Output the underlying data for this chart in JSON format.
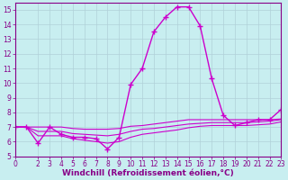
{
  "xlabel": "Windchill (Refroidissement éolien,°C)",
  "background_color": "#c8eef0",
  "grid_color": "#b0d0d8",
  "line_color": "#cc00cc",
  "axis_color": "#880088",
  "xlim": [
    0,
    23
  ],
  "ylim": [
    5,
    15.5
  ],
  "yticks": [
    5,
    6,
    7,
    8,
    9,
    10,
    11,
    12,
    13,
    14,
    15
  ],
  "xticks": [
    0,
    2,
    3,
    4,
    5,
    6,
    7,
    8,
    9,
    10,
    11,
    12,
    13,
    14,
    15,
    16,
    17,
    18,
    19,
    20,
    21,
    22,
    23
  ],
  "series": [
    {
      "x": [
        0,
        1,
        2,
        3,
        4,
        5,
        6,
        7,
        8,
        9,
        10,
        11,
        12,
        13,
        14,
        15,
        16,
        17,
        18,
        19,
        20,
        21,
        22,
        23
      ],
      "y": [
        7.0,
        7.0,
        5.9,
        7.0,
        6.5,
        6.3,
        6.3,
        6.2,
        5.5,
        6.3,
        9.9,
        11.0,
        13.5,
        14.5,
        15.2,
        15.2,
        13.9,
        10.3,
        7.8,
        7.1,
        7.3,
        7.5,
        7.5,
        8.2
      ],
      "marker": "+",
      "markersize": 4,
      "linewidth": 1.0
    },
    {
      "x": [
        0,
        1,
        2,
        3,
        4,
        5,
        6,
        7,
        8,
        9,
        10,
        11,
        12,
        13,
        14,
        15,
        16,
        17,
        18,
        19,
        20,
        21,
        22,
        23
      ],
      "y": [
        7.0,
        7.0,
        7.0,
        7.0,
        7.0,
        6.9,
        6.85,
        6.85,
        6.85,
        6.9,
        7.05,
        7.1,
        7.2,
        7.3,
        7.4,
        7.5,
        7.5,
        7.5,
        7.5,
        7.5,
        7.5,
        7.5,
        7.5,
        7.55
      ],
      "marker": null,
      "linewidth": 0.8
    },
    {
      "x": [
        0,
        1,
        2,
        3,
        4,
        5,
        6,
        7,
        8,
        9,
        10,
        11,
        12,
        13,
        14,
        15,
        16,
        17,
        18,
        19,
        20,
        21,
        22,
        23
      ],
      "y": [
        7.0,
        7.0,
        6.7,
        6.7,
        6.7,
        6.55,
        6.5,
        6.45,
        6.4,
        6.5,
        6.7,
        6.85,
        6.9,
        7.0,
        7.1,
        7.2,
        7.25,
        7.3,
        7.3,
        7.3,
        7.3,
        7.35,
        7.4,
        7.5
      ],
      "marker": null,
      "linewidth": 0.8
    },
    {
      "x": [
        0,
        1,
        2,
        3,
        4,
        5,
        6,
        7,
        8,
        9,
        10,
        11,
        12,
        13,
        14,
        15,
        16,
        17,
        18,
        19,
        20,
        21,
        22,
        23
      ],
      "y": [
        7.0,
        7.0,
        6.4,
        6.4,
        6.4,
        6.2,
        6.1,
        6.0,
        5.9,
        6.0,
        6.3,
        6.5,
        6.6,
        6.7,
        6.8,
        6.95,
        7.05,
        7.1,
        7.1,
        7.1,
        7.1,
        7.15,
        7.2,
        7.35
      ],
      "marker": null,
      "linewidth": 0.8
    }
  ],
  "tick_fontsize": 5.5,
  "label_fontsize": 6.5
}
